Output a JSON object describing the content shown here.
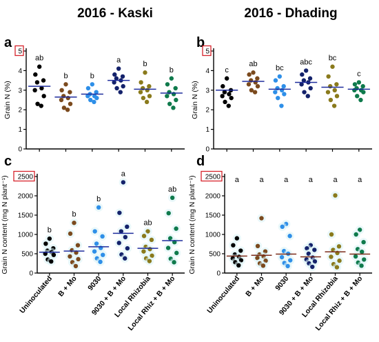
{
  "figure": {
    "col_titles": [
      "2016 - Kaski",
      "2016 - Dhading"
    ]
  },
  "colors": {
    "Uninoculated": "#000000",
    "B + Mo": "#7b4a1e",
    "9030": "#2e8fe8",
    "9030 + B + Mo": "#14226b",
    "Local Rhizobia": "#8a7a1c",
    "Local Rhiz + B + Mo": "#0f7a4c",
    "mean_line_top": "#1d2b9c",
    "mean_line_bottom_left": "#1d2b9c",
    "mean_line_bottom_right": "#7a2a18",
    "highlight_box": "#d6222b",
    "halo": "#d9f3f6"
  },
  "chart_data": [
    {
      "panel": "a",
      "type": "scatter",
      "column": "2016 - Kaski",
      "ylabel": "Grain N (%)",
      "ylim": [
        0,
        5
      ],
      "yticks": [
        "0",
        "1",
        "2",
        "3",
        "4",
        "5"
      ],
      "highlight_tick": "5",
      "categories": [
        "Uninoculated",
        "B + Mo",
        "9030",
        "9030 + B + Mo",
        "Local Rhizobia",
        "Local Rhiz + B + Mo"
      ],
      "letters": [
        "ab",
        "b",
        "b",
        "a",
        "b",
        "b"
      ],
      "means": [
        3.2,
        2.65,
        2.8,
        3.5,
        3.05,
        2.85
      ],
      "points": [
        [
          4.2,
          3.8,
          3.5,
          3.4,
          3.1,
          3.0,
          2.7,
          2.3,
          2.2
        ],
        [
          3.3,
          3.0,
          2.9,
          2.7,
          2.6,
          2.5,
          2.3,
          2.1,
          2.0
        ],
        [
          3.3,
          3.1,
          2.9,
          2.8,
          2.7,
          2.7,
          2.6,
          2.5,
          2.4
        ],
        [
          4.1,
          3.8,
          3.7,
          3.6,
          3.5,
          3.4,
          3.2,
          3.1,
          2.9
        ],
        [
          3.9,
          3.4,
          3.2,
          3.1,
          3.0,
          2.9,
          2.7,
          2.6,
          2.4
        ],
        [
          3.6,
          3.3,
          3.1,
          2.9,
          2.8,
          2.7,
          2.5,
          2.3,
          2.1
        ]
      ]
    },
    {
      "panel": "b",
      "type": "scatter",
      "column": "2016 - Dhading",
      "ylabel": "Grain N (%)",
      "ylim": [
        0,
        5
      ],
      "yticks": [
        "0",
        "1",
        "2",
        "3",
        "4",
        "5"
      ],
      "highlight_tick": "5",
      "categories": [
        "Uninoculated",
        "B + Mo",
        "9030",
        "9030 + B + Mo",
        "Local Rhizobia",
        "Local Rhiz + B + Mo"
      ],
      "letters": [
        "c",
        "ab",
        "bc",
        "abc",
        "bc",
        "c"
      ],
      "means": [
        3.0,
        3.45,
        3.05,
        3.4,
        3.15,
        3.05
      ],
      "points": [
        [
          3.6,
          3.2,
          3.0,
          2.9,
          2.8,
          2.7,
          2.6,
          2.4,
          2.2
        ],
        [
          3.9,
          3.8,
          3.6,
          3.5,
          3.4,
          3.3,
          3.2,
          3.0,
          2.9
        ],
        [
          3.7,
          3.5,
          3.2,
          3.1,
          3.0,
          2.9,
          2.8,
          2.6,
          2.2
        ],
        [
          4.0,
          3.8,
          3.6,
          3.5,
          3.4,
          3.3,
          3.1,
          2.9,
          2.7
        ],
        [
          4.2,
          3.7,
          3.3,
          3.2,
          3.0,
          2.9,
          2.7,
          2.5,
          2.2
        ],
        [
          3.4,
          3.3,
          3.2,
          3.1,
          3.0,
          3.0,
          2.9,
          2.7,
          2.5
        ]
      ]
    },
    {
      "panel": "c",
      "type": "scatter",
      "column": "2016 - Kaski",
      "ylabel": "Grain N content (mg N plant⁻¹)",
      "ylim": [
        0,
        2500
      ],
      "yticks": [
        "0",
        "500",
        "1000",
        "1500",
        "2000",
        "2500"
      ],
      "highlight_tick": "2500",
      "categories": [
        "Uninoculated",
        "B + Mo",
        "9030",
        "9030 + B + Mo",
        "Local Rhizobia",
        "Local Rhiz + B + Mo"
      ],
      "letters": [
        "b",
        "b",
        "b",
        "a",
        "ab",
        "ab"
      ],
      "means": [
        540,
        570,
        680,
        1030,
        640,
        840
      ],
      "points": [
        [
          890,
          760,
          640,
          580,
          540,
          500,
          470,
          350,
          300
        ],
        [
          1300,
          1020,
          720,
          590,
          530,
          430,
          360,
          280,
          180
        ],
        [
          1700,
          1080,
          950,
          760,
          650,
          560,
          470,
          380,
          290
        ],
        [
          2350,
          1560,
          1200,
          1080,
          930,
          780,
          640,
          480,
          380
        ],
        [
          1080,
          960,
          860,
          680,
          620,
          560,
          450,
          380,
          310
        ],
        [
          1950,
          1550,
          1150,
          900,
          800,
          650,
          520,
          370,
          280
        ]
      ]
    },
    {
      "panel": "d",
      "type": "scatter",
      "column": "2016 - Dhading",
      "ylabel": "Grain N content (mg N plant⁻¹)",
      "ylim": [
        0,
        2500
      ],
      "yticks": [
        "0",
        "500",
        "1000",
        "1500",
        "2000",
        "2500"
      ],
      "highlight_tick": "2500",
      "categories": [
        "Uninoculated",
        "B + Mo",
        "9030",
        "9030 + B + Mo",
        "Local Rhizobia",
        "Local Rhiz + B + Mo"
      ],
      "letters": [
        "a",
        "a",
        "a",
        "a",
        "a",
        "a"
      ],
      "means": [
        440,
        460,
        490,
        420,
        550,
        490
      ],
      "points": [
        [
          900,
          720,
          580,
          480,
          420,
          380,
          330,
          280,
          200
        ],
        [
          1420,
          700,
          560,
          480,
          430,
          390,
          320,
          250,
          190
        ],
        [
          1270,
          1200,
          960,
          570,
          500,
          410,
          330,
          260,
          180
        ],
        [
          720,
          640,
          600,
          500,
          400,
          350,
          300,
          250,
          160
        ],
        [
          2010,
          1000,
          690,
          600,
          520,
          420,
          320,
          230,
          150
        ],
        [
          1120,
          1000,
          800,
          620,
          550,
          430,
          350,
          270,
          190
        ]
      ]
    }
  ]
}
